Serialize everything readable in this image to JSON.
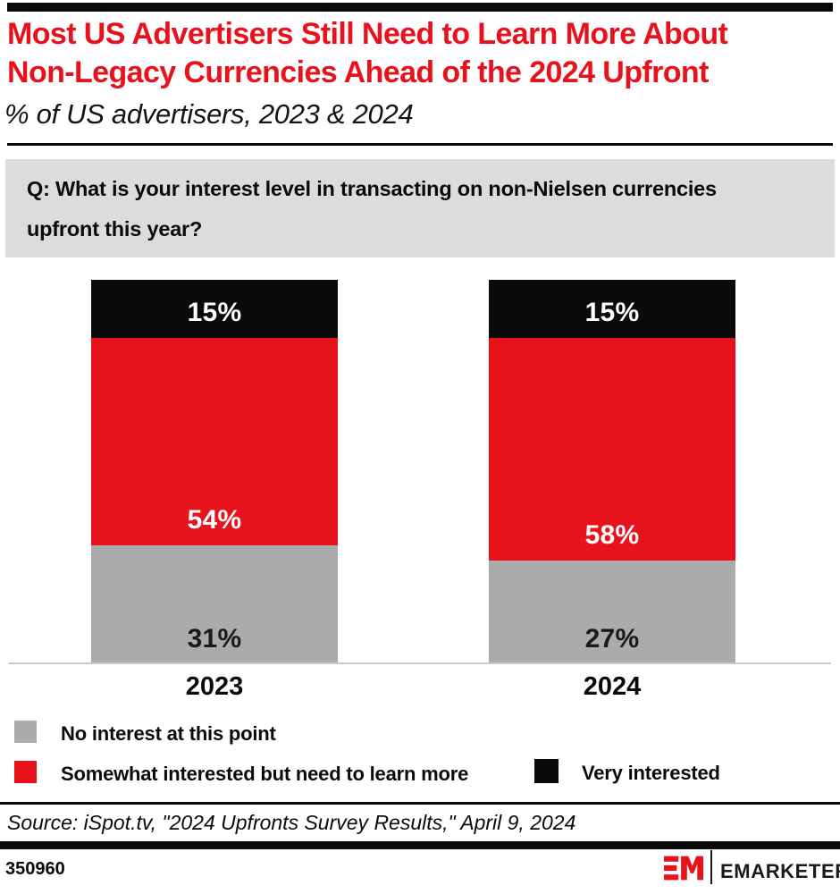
{
  "header": {
    "title_lines": [
      "Most US Advertisers Still Need to Learn More About",
      "Non-Legacy Currencies Ahead of the 2024 Upfront"
    ],
    "subtitle": "% of US advertisers, 2023 & 2024",
    "title_color": "#e8121d"
  },
  "question": {
    "line1": "Q: What is your interest level in transacting on non-Nielsen currencies",
    "line2": "upfront this year?",
    "box_color": "#dcdcda"
  },
  "chart_data": {
    "type": "bar",
    "stacked": true,
    "orientation": "vertical",
    "categories": [
      "2023",
      "2024"
    ],
    "series": [
      {
        "name": "No interest at this point",
        "color": "#ababab",
        "label_color": "#1a1a1a",
        "values": [
          31,
          27
        ]
      },
      {
        "name": "Somewhat interested but need to learn more",
        "color": "#e8121d",
        "label_color": "#ffffff",
        "values": [
          54,
          58
        ]
      },
      {
        "name": "Very interested",
        "color": "#0a0a0a",
        "label_color": "#ffffff",
        "values": [
          15,
          15
        ]
      }
    ],
    "value_format": "percent",
    "value_suffix": "%",
    "ylim": [
      0,
      100
    ],
    "grid": false,
    "legend_position": "bottom",
    "axis_line_color": "#c9c9c9"
  },
  "source": {
    "text": "Source: iSpot.tv, \"2024 Upfronts Survey Results,\" April 9, 2024"
  },
  "footer": {
    "chart_id": "350960",
    "brand": "EMARKETER",
    "brand_red": "#e8121d"
  }
}
